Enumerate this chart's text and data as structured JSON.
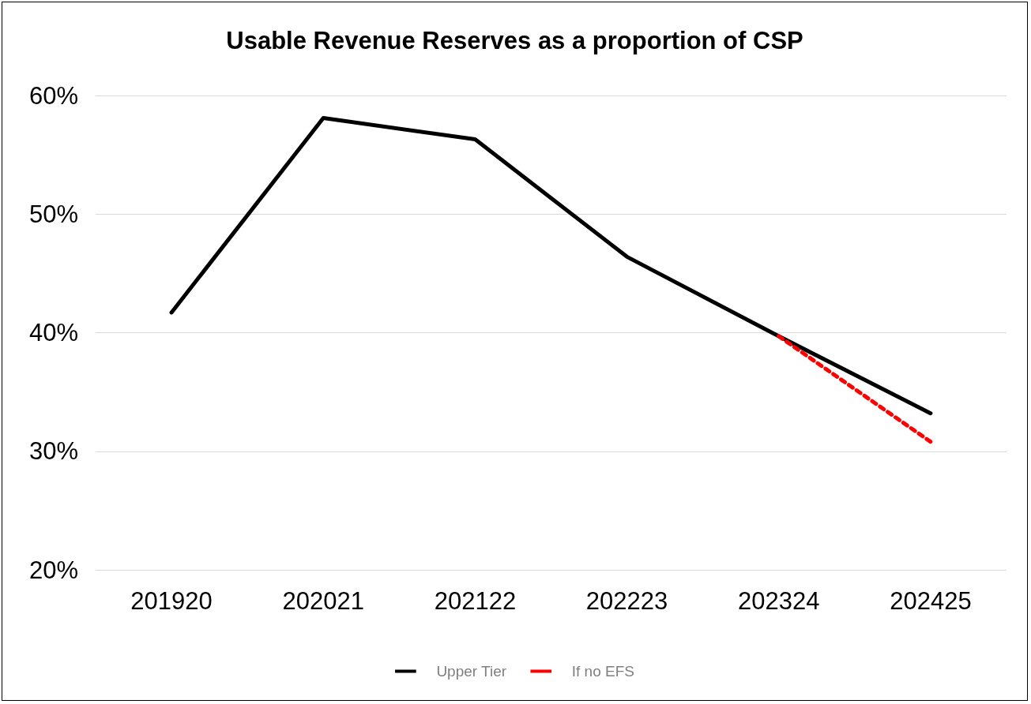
{
  "chart_data": {
    "type": "line",
    "title": "Usable Revenue Reserves as a proportion of CSP",
    "categories": [
      "201920",
      "202021",
      "202122",
      "202223",
      "202324",
      "202425"
    ],
    "series": [
      {
        "name": "Upper Tier",
        "color": "#000000",
        "values": [
          41.7,
          58.1,
          56.3,
          46.4,
          39.7,
          33.2
        ],
        "line_style": "solid"
      },
      {
        "name": "If no EFS",
        "color": "#ff0000",
        "values": [
          null,
          null,
          null,
          null,
          39.7,
          30.8
        ],
        "line_style": "dashed"
      }
    ],
    "ylim": [
      20,
      60
    ],
    "yticks": [
      {
        "value": 20,
        "label": "20%"
      },
      {
        "value": 30,
        "label": "30%"
      },
      {
        "value": 40,
        "label": "40%"
      },
      {
        "value": 50,
        "label": "50%"
      },
      {
        "value": 60,
        "label": "60%"
      }
    ],
    "grid": "y",
    "legend": "bottom",
    "marker": "none"
  }
}
